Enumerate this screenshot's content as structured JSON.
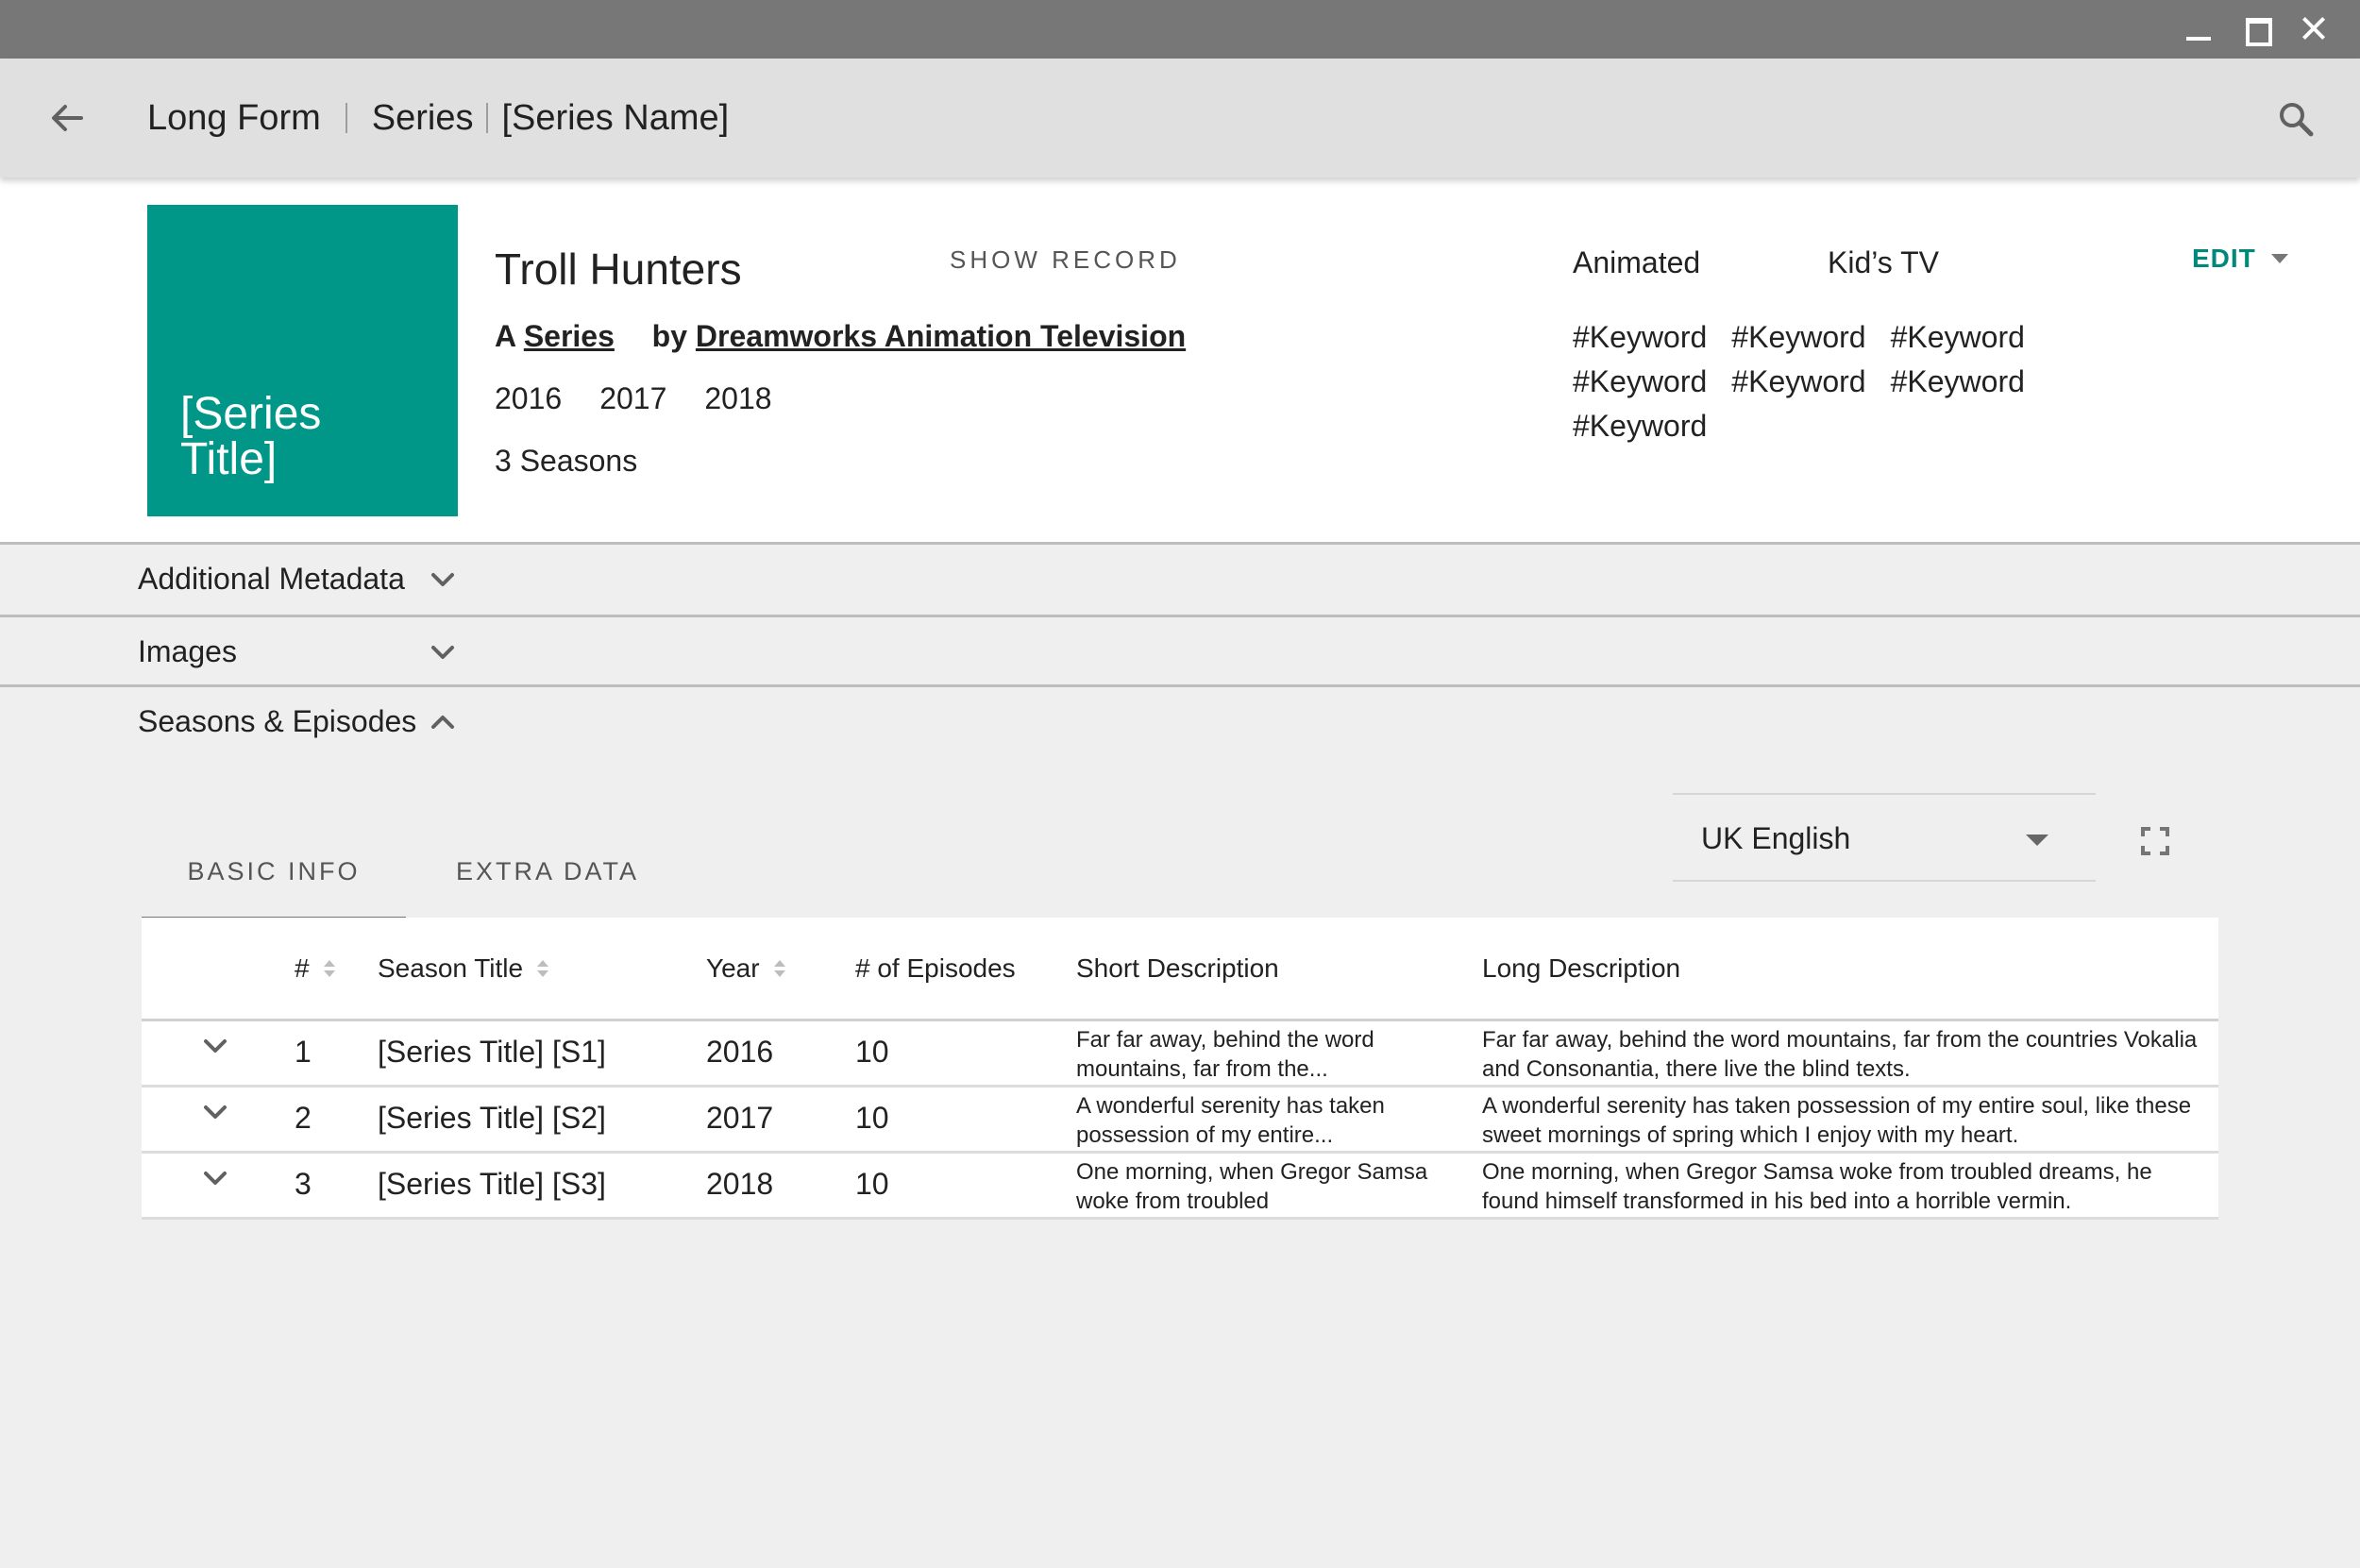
{
  "app_bar": {
    "breadcrumb": [
      "Long Form",
      "Series",
      "[Series Name]"
    ]
  },
  "header": {
    "poster_title": "[Series Title]",
    "title": "Troll Hunters",
    "show_record_label": "SHOW RECORD",
    "byline_prefix": "A",
    "byline_type": "Series",
    "byline_by": "by",
    "byline_studio": "Dreamworks Animation Television",
    "years": [
      "2016",
      "2017",
      "2018"
    ],
    "seasons_count": "3 Seasons",
    "genres": [
      "Animated",
      "Kid’s TV"
    ],
    "edit_label": "EDIT",
    "keywords": [
      "#Keyword",
      "#Keyword",
      "#Keyword",
      "#Keyword",
      "#Keyword",
      "#Keyword",
      "#Keyword"
    ]
  },
  "accordions": [
    {
      "label": "Additional Metadata",
      "expanded": false
    },
    {
      "label": "Images",
      "expanded": false
    },
    {
      "label": "Seasons & Episodes",
      "expanded": true
    }
  ],
  "tabs": [
    {
      "label": "BASIC INFO",
      "active": true
    },
    {
      "label": "EXTRA DATA",
      "active": false
    }
  ],
  "language_select": {
    "value": "UK English"
  },
  "table": {
    "columns": [
      "#",
      "Season Title",
      "Year",
      "# of Episodes",
      "Short Description",
      "Long Description"
    ],
    "rows": [
      {
        "num": "1",
        "title": "[Series Title] [S1]",
        "year": "2016",
        "episodes": "10",
        "short": "Far far away, behind the word mountains, far from the...",
        "long": "Far far away, behind the word mountains, far from the countries Vokalia and Consonantia, there live the blind texts."
      },
      {
        "num": "2",
        "title": "[Series Title] [S2]",
        "year": "2017",
        "episodes": "10",
        "short": "A wonderful serenity has taken possession of my entire...",
        "long": "A wonderful serenity has taken possession of my entire soul, like these sweet mornings of spring which I enjoy with my heart."
      },
      {
        "num": "3",
        "title": "[Series Title] [S3]",
        "year": "2018",
        "episodes": "10",
        "short": "One morning, when Gregor Samsa woke from troubled",
        "long": "One morning, when Gregor Samsa woke from troubled dreams, he found himself transformed in his bed into a horrible vermin."
      }
    ]
  },
  "colors": {
    "accent": "#00897b",
    "poster": "#009688",
    "titlebar": "#777777",
    "appbar": "#e0e0e0"
  },
  "icons": {
    "back": "arrow-left-icon",
    "search": "search-icon",
    "expand": "fullscreen-icon",
    "chevron_down": "chevron-down-icon",
    "chevron_up": "chevron-up-icon"
  }
}
